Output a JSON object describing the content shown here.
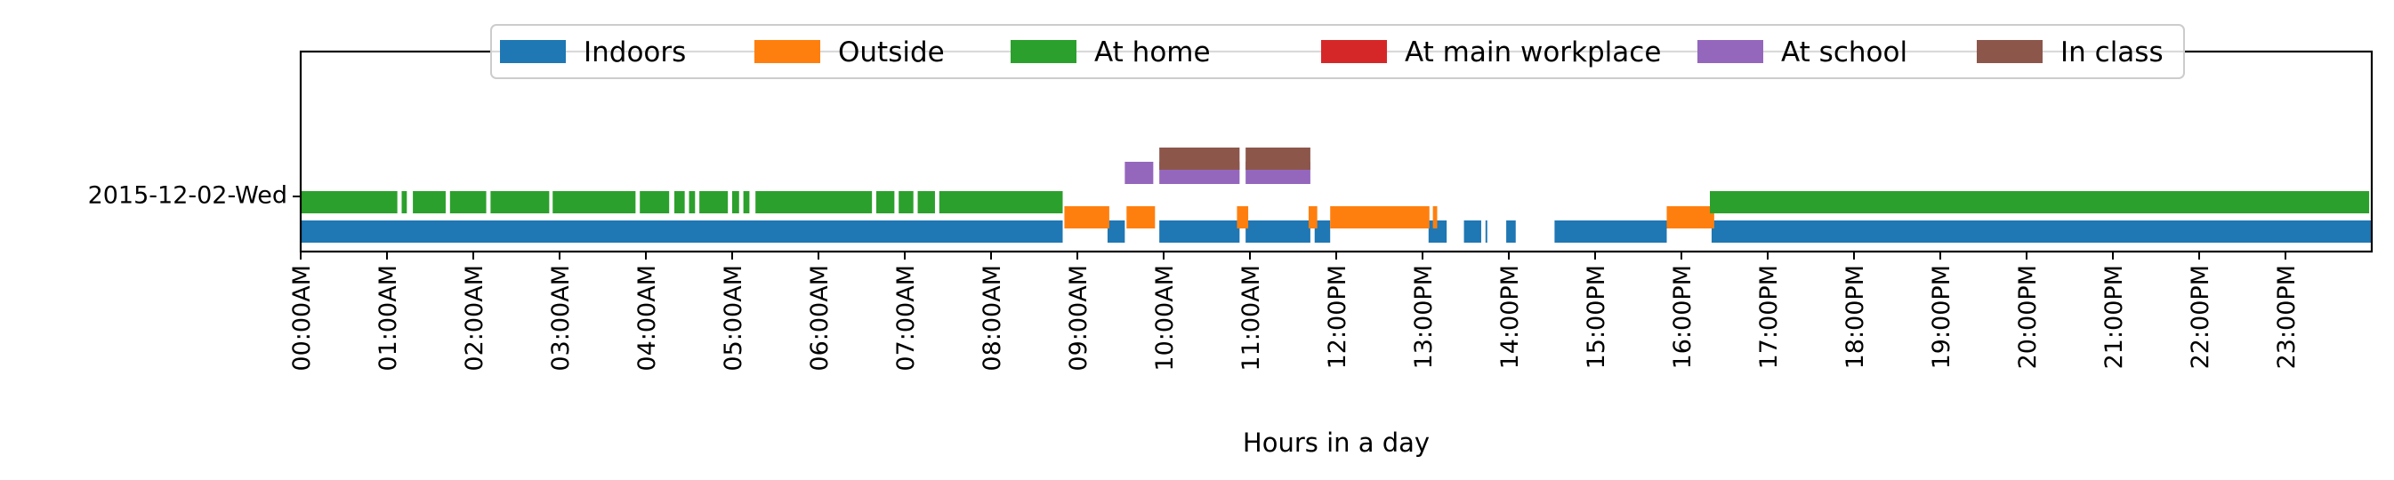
{
  "chart_data": {
    "type": "timeline",
    "title": "",
    "xlabel": "Hours in a day",
    "ylabel": "",
    "x_unit": "hours",
    "xlim": [
      0,
      24
    ],
    "row_label": "2015-12-02-Wed",
    "x_tick_labels": [
      "00:00AM",
      "01:00AM",
      "02:00AM",
      "03:00AM",
      "04:00AM",
      "05:00AM",
      "06:00AM",
      "07:00AM",
      "08:00AM",
      "09:00AM",
      "10:00AM",
      "11:00AM",
      "12:00PM",
      "13:00PM",
      "14:00PM",
      "15:00PM",
      "16:00PM",
      "17:00PM",
      "18:00PM",
      "19:00PM",
      "20:00PM",
      "21:00PM",
      "22:00PM",
      "23:00PM"
    ],
    "legend_position": "top-center",
    "series": [
      {
        "name": "Indoors",
        "color": "#1f77b4",
        "intervals": [
          [
            0.0,
            8.83
          ],
          [
            9.35,
            9.55
          ],
          [
            9.95,
            10.88
          ],
          [
            10.95,
            11.7
          ],
          [
            11.75,
            11.93
          ],
          [
            13.07,
            13.28
          ],
          [
            13.48,
            13.68
          ],
          [
            13.73,
            13.75
          ],
          [
            13.97,
            14.08
          ],
          [
            14.53,
            15.83
          ],
          [
            16.35,
            24.0
          ]
        ]
      },
      {
        "name": "Outside",
        "color": "#ff7f0e",
        "intervals": [
          [
            8.85,
            9.37
          ],
          [
            9.57,
            9.9
          ],
          [
            10.85,
            10.98
          ],
          [
            11.68,
            11.78
          ],
          [
            11.93,
            13.08
          ],
          [
            13.12,
            13.17
          ],
          [
            15.83,
            16.38
          ]
        ]
      },
      {
        "name": "At home",
        "color": "#2ca02c",
        "intervals": [
          [
            0.0,
            1.12
          ],
          [
            1.17,
            1.23
          ],
          [
            1.3,
            1.68
          ],
          [
            1.73,
            2.15
          ],
          [
            2.2,
            2.88
          ],
          [
            2.92,
            3.88
          ],
          [
            3.93,
            4.27
          ],
          [
            4.33,
            4.45
          ],
          [
            4.5,
            4.57
          ],
          [
            4.62,
            4.95
          ],
          [
            5.0,
            5.08
          ],
          [
            5.13,
            5.2
          ],
          [
            5.27,
            6.62
          ],
          [
            6.67,
            6.88
          ],
          [
            6.93,
            7.1
          ],
          [
            7.15,
            7.35
          ],
          [
            7.4,
            8.83
          ],
          [
            16.33,
            23.97
          ]
        ]
      },
      {
        "name": "At main workplace",
        "color": "#d62728",
        "intervals": []
      },
      {
        "name": "At school",
        "color": "#9467bd",
        "intervals": [
          [
            9.55,
            9.88
          ],
          [
            9.95,
            10.88
          ],
          [
            10.95,
            11.7
          ]
        ]
      },
      {
        "name": "In class",
        "color": "#8c564b",
        "intervals": [
          [
            9.95,
            10.88
          ],
          [
            10.95,
            11.7
          ]
        ]
      }
    ]
  }
}
